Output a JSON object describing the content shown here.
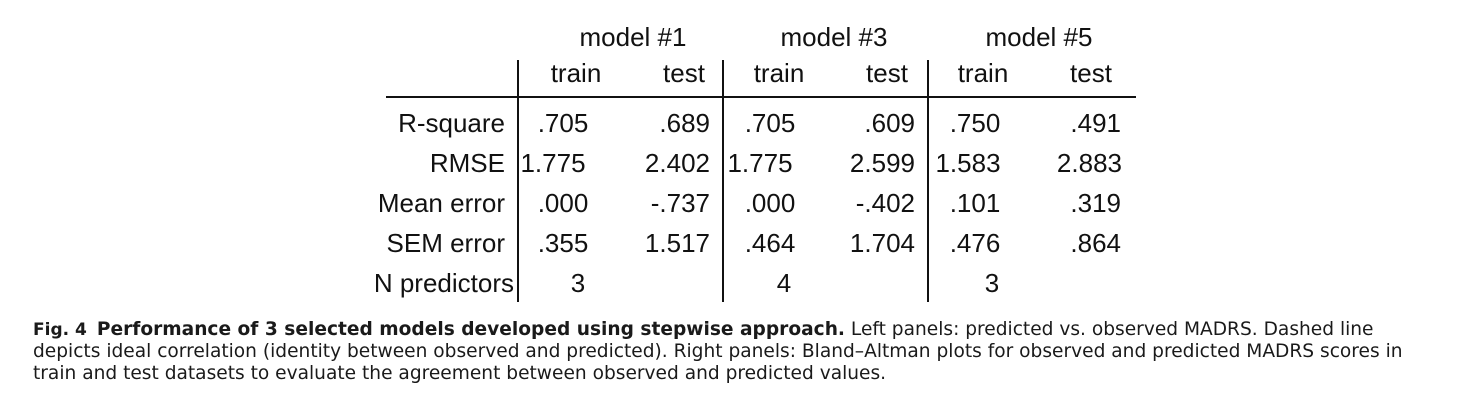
{
  "table": {
    "model_headers": [
      "model #1",
      "model #3",
      "model #5"
    ],
    "sub_headers": [
      "train",
      "test",
      "train",
      "test",
      "train",
      "test"
    ],
    "rows": [
      {
        "label": "R-square",
        "values": [
          ".705",
          ".689",
          ".705",
          ".609",
          ".750",
          ".491"
        ]
      },
      {
        "label": "RMSE",
        "values": [
          "1.775",
          "2.402",
          "1.775",
          "2.599",
          "1.583",
          "2.883"
        ]
      },
      {
        "label": "Mean error",
        "values": [
          ".000",
          "-.737",
          ".000",
          "-.402",
          ".101",
          ".319"
        ]
      },
      {
        "label": "SEM error",
        "values": [
          ".355",
          "1.517",
          ".464",
          "1.704",
          ".476",
          ".864"
        ]
      }
    ],
    "n_predictors": {
      "label": "N predictors",
      "values": [
        "3",
        "4",
        "3"
      ]
    }
  },
  "caption": {
    "fig_label": "Fig. 4",
    "title": "Performance of 3 selected models developed using stepwise approach.",
    "text": " Left panels: predicted vs. observed MADRS. Dashed line depicts ideal correlation (identity between observed and predicted). Right panels: Bland–Altman plots for observed and predicted MADRS scores in train and test datasets to evaluate the agreement between observed and predicted values."
  }
}
